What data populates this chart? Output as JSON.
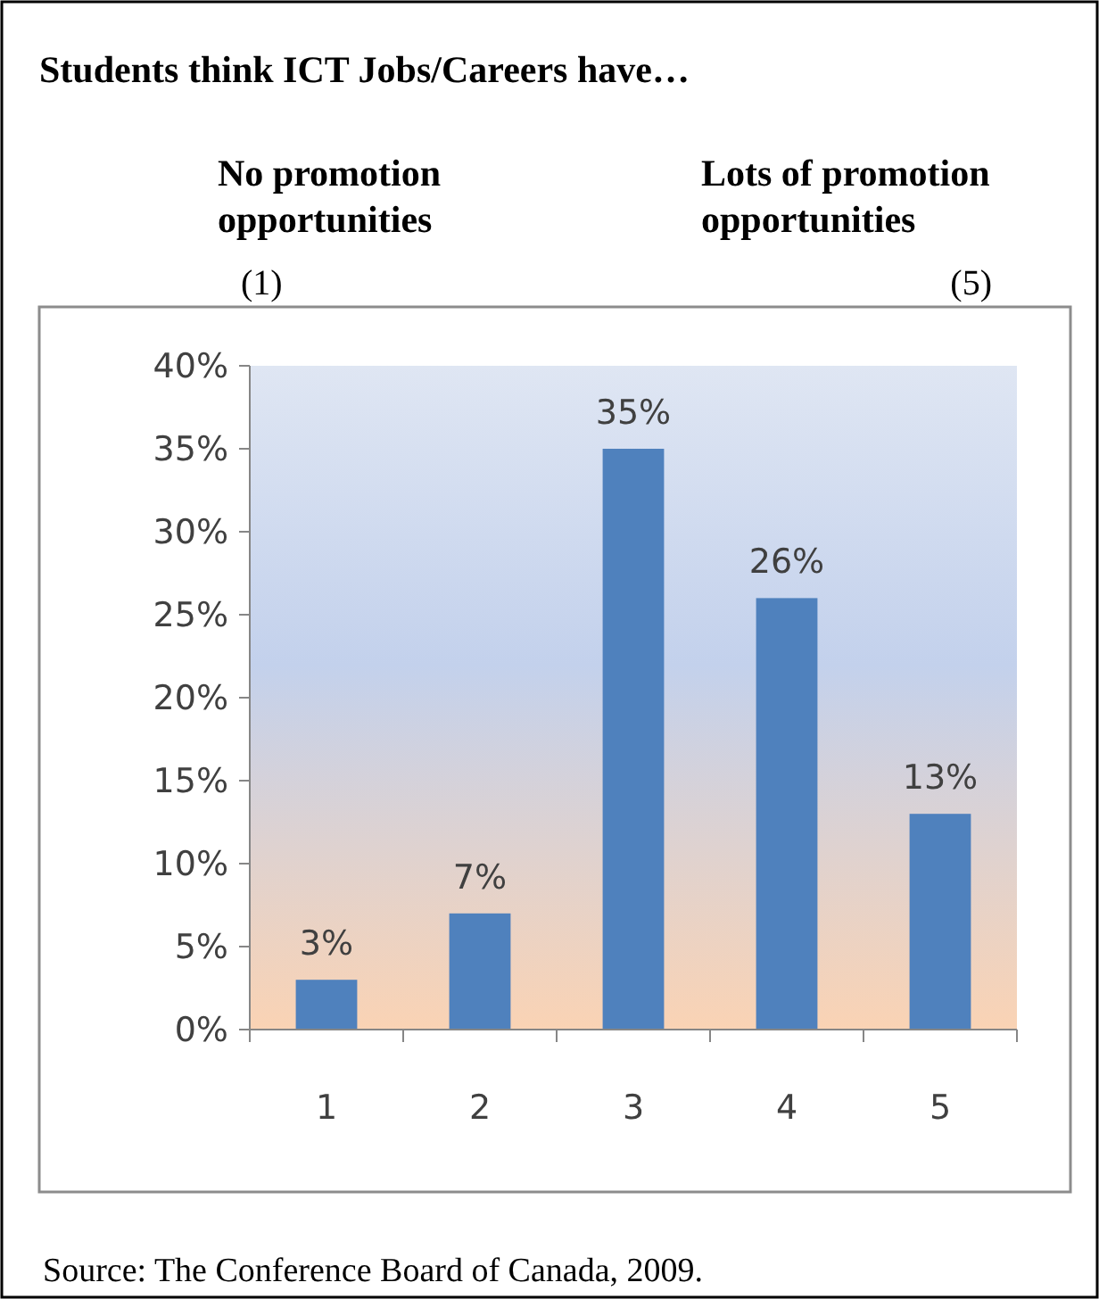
{
  "chart_data": {
    "type": "bar",
    "title": "Students think ICT Jobs/Careers have…",
    "annotations": [
      "No promotion opportunities",
      "(1)",
      "Lots of promotion opportunities",
      "(5)",
      "Source: The Conference Board of Canada, 2009."
    ],
    "categories": [
      "1",
      "2",
      "3",
      "4",
      "5"
    ],
    "values": [
      3,
      7,
      35,
      26,
      13
    ],
    "value_labels": [
      "3%",
      "7%",
      "35%",
      "26%",
      "13%"
    ],
    "color": "#4f81bd",
    "ylim": [
      0,
      40
    ],
    "yticks": [
      {
        "value": 0,
        "label": "0%"
      },
      {
        "value": 5,
        "label": "5%"
      },
      {
        "value": 10,
        "label": "10%"
      },
      {
        "value": 15,
        "label": "15%"
      },
      {
        "value": 20,
        "label": "20%"
      },
      {
        "value": 25,
        "label": "25%"
      },
      {
        "value": 30,
        "label": "30%"
      },
      {
        "value": 35,
        "label": "35%"
      },
      {
        "value": 40,
        "label": "40%"
      }
    ],
    "grid": false
  }
}
